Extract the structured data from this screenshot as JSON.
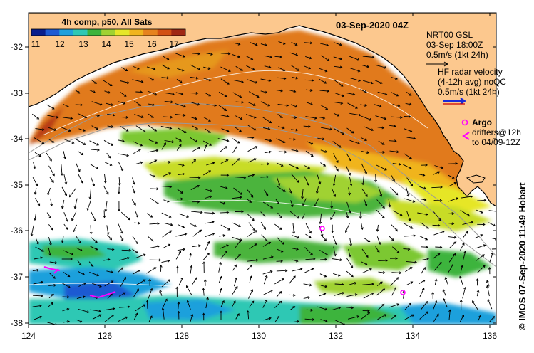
{
  "colorbar": {
    "title": "4h comp, p50, All Sats",
    "ticks": [
      "11",
      "12",
      "13",
      "14",
      "15",
      "16",
      "17"
    ],
    "colors": [
      "#0a1e8c",
      "#1e5ad2",
      "#1fa0dc",
      "#2ec8b4",
      "#3cb43c",
      "#a0d232",
      "#e6e628",
      "#f0b41e",
      "#e6821e",
      "#d25014",
      "#a02814"
    ]
  },
  "date_label": "03-Sep-2020 04Z",
  "legend": {
    "nrt_title": "NRT00 GSL",
    "nrt_time": "03-Sep 18:00Z",
    "nrt_scale": "0.5m/s (1kt 24h)",
    "hf_line1": "HF radar velocity",
    "hf_line2": "(4-12h avg) noQC",
    "hf_scale": "0.5m/s (1kt 24h)",
    "argo_label": "Argo",
    "drifters_line1": "drifters@12h",
    "drifters_line2": "to 04/09-12Z"
  },
  "axes": {
    "x_ticks": [
      "124",
      "126",
      "128",
      "130",
      "132",
      "134",
      "136"
    ],
    "y_ticks": [
      "-32",
      "-33",
      "-34",
      "-35",
      "-36",
      "-37",
      "-38"
    ]
  },
  "credit": "© IMOS 07-Sep-2020 11:49 Hobart",
  "colors": {
    "land": "#fcc88e",
    "coast": "#000000",
    "vector": "#000000",
    "hf_vector": "#1a2ad8",
    "argo": "#ff00ff",
    "drifter": "#ff00ff"
  }
}
